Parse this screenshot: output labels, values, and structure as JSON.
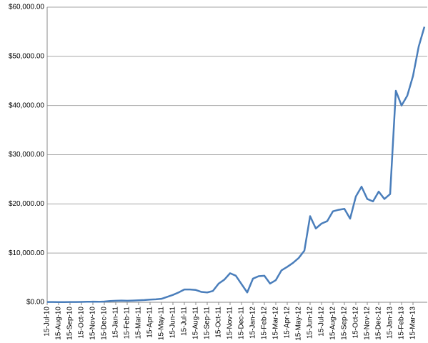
{
  "chart_data": {
    "type": "line",
    "categories": [
      "15-Jul-10",
      null,
      "15-Aug-10",
      null,
      "15-Sep-10",
      null,
      "15-Oct-10",
      null,
      "15-Nov-10",
      null,
      "15-Dec-10",
      null,
      "15-Jan-11",
      null,
      "15-Feb-11",
      null,
      "15-Mar-11",
      null,
      "15-Apr-11",
      null,
      "15-May-11",
      null,
      "15-Jun-11",
      null,
      "15-Jul-11",
      null,
      "15-Aug-11",
      null,
      "15-Sep-11",
      null,
      "15-Oct-11",
      null,
      "15-Nov-11",
      null,
      "15-Dec-11",
      null,
      "15-Jan-12",
      null,
      "15-Feb-12",
      null,
      "15-Mar-12",
      null,
      "15-Apr-12",
      null,
      "15-May-12",
      null,
      "15-Jun-12",
      null,
      "15-Jul-12",
      null,
      "15-Aug-12",
      null,
      "15-Sep-12",
      null,
      "15-Oct-12",
      null,
      "15-Nov-12",
      null,
      "15-Dec-12",
      null,
      "15-Jan-13",
      null,
      "15-Feb-13",
      null,
      "15-Mar-13",
      null,
      null
    ],
    "values": [
      50,
      50,
      30,
      40,
      50,
      60,
      80,
      100,
      120,
      100,
      150,
      250,
      300,
      350,
      300,
      350,
      400,
      450,
      550,
      600,
      700,
      1100,
      1500,
      2000,
      2600,
      2600,
      2500,
      2100,
      2000,
      2300,
      3800,
      4600,
      5900,
      5400,
      3700,
      2000,
      4800,
      5300,
      5400,
      3800,
      4500,
      6500,
      7200,
      8000,
      9000,
      10500,
      17500,
      15000,
      16000,
      16500,
      18500,
      18800,
      19000,
      17000,
      21500,
      23500,
      21000,
      20500,
      22500,
      21000,
      22000,
      43000,
      40000,
      42000,
      46000,
      52000,
      56000
    ],
    "color": "#4a7ebb",
    "ylim": [
      0,
      60000
    ],
    "yticks": [
      {
        "value": 0,
        "label": "$0.00"
      },
      {
        "value": 10000,
        "label": "$10,000.00"
      },
      {
        "value": 20000,
        "label": "$20,000.00"
      },
      {
        "value": 30000,
        "label": "$30,000.00"
      },
      {
        "value": 40000,
        "label": "$40,000.00"
      },
      {
        "value": 50000,
        "label": "$50,000.00"
      },
      {
        "value": 60000,
        "label": "$60,000.00"
      }
    ],
    "grid": true
  }
}
